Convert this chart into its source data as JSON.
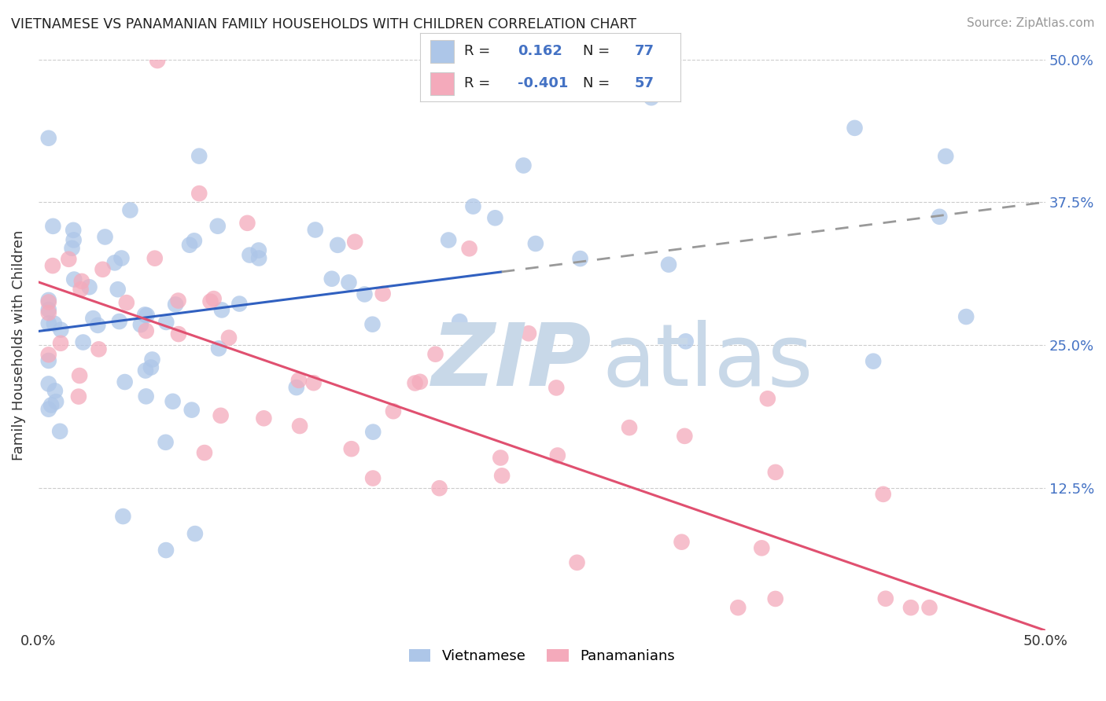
{
  "title": "VIETNAMESE VS PANAMANIAN FAMILY HOUSEHOLDS WITH CHILDREN CORRELATION CHART",
  "source": "Source: ZipAtlas.com",
  "ylabel": "Family Households with Children",
  "xlim": [
    0.0,
    0.5
  ],
  "ylim": [
    0.0,
    0.5
  ],
  "ytick_vals": [
    0.125,
    0.25,
    0.375,
    0.5
  ],
  "ytick_labels_right": [
    "12.5%",
    "25.0%",
    "37.5%",
    "50.0%"
  ],
  "viet_color": "#adc6e8",
  "pan_color": "#f4aabb",
  "viet_line_color": "#3060c0",
  "pan_line_color": "#e05070",
  "watermark_zip_color": "#c8d8e8",
  "watermark_atlas_color": "#c8d8e8",
  "background_color": "#ffffff",
  "grid_color": "#cccccc",
  "blue_text_color": "#4472C4",
  "title_color": "#222222",
  "source_color": "#999999",
  "axis_label_color": "#333333",
  "legend_border_color": "#cccccc",
  "bottom_legend_label1": "Vietnamese",
  "bottom_legend_label2": "Panamanians",
  "viet_trend_x": [
    0.0,
    0.5
  ],
  "viet_trend_y": [
    0.262,
    0.375
  ],
  "viet_trend_solid_end": 0.23,
  "pan_trend_x": [
    0.0,
    0.5
  ],
  "pan_trend_y": [
    0.305,
    0.0
  ]
}
